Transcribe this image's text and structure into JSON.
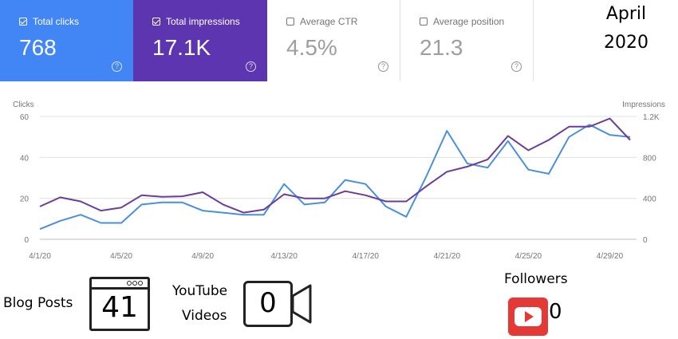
{
  "month": {
    "line1": "April",
    "line2": "2020"
  },
  "cards": [
    {
      "label": "Total clicks",
      "value": "768",
      "checked": true,
      "color": "#4285f4"
    },
    {
      "label": "Total impressions",
      "value": "17.1K",
      "checked": true,
      "color": "#5e35b1"
    },
    {
      "label": "Average CTR",
      "value": "4.5%",
      "checked": false
    },
    {
      "label": "Average position",
      "value": "21.3",
      "checked": false
    }
  ],
  "help_glyph": "?",
  "chart_data": {
    "type": "line",
    "left_axis_label": "Clicks",
    "right_axis_label": "Impressions",
    "left_ticks": [
      "0",
      "20",
      "40",
      "60"
    ],
    "right_ticks": [
      "0",
      "400",
      "800",
      "1.2K"
    ],
    "ylim_left": [
      0,
      60
    ],
    "ylim_right": [
      0,
      1200
    ],
    "x_tick_labels": [
      "4/1/20",
      "4/5/20",
      "4/9/20",
      "4/13/20",
      "4/17/20",
      "4/21/20",
      "4/25/20",
      "4/29/20"
    ],
    "x": [
      "4/1",
      "4/2",
      "4/3",
      "4/4",
      "4/5",
      "4/6",
      "4/7",
      "4/8",
      "4/9",
      "4/10",
      "4/11",
      "4/12",
      "4/13",
      "4/14",
      "4/15",
      "4/16",
      "4/17",
      "4/18",
      "4/19",
      "4/20",
      "4/21",
      "4/22",
      "4/23",
      "4/24",
      "4/25",
      "4/26",
      "4/27",
      "4/28",
      "4/29",
      "4/30"
    ],
    "grid": true,
    "series": [
      {
        "name": "Clicks",
        "axis": "left",
        "color": "#4a8fdc",
        "values": [
          5,
          9,
          12,
          8,
          8,
          17,
          18,
          18,
          14,
          13,
          12,
          12,
          27,
          17,
          18,
          29,
          27,
          16,
          11,
          31,
          53,
          37,
          35,
          48,
          34,
          32,
          50,
          56,
          51,
          50
        ]
      },
      {
        "name": "Impressions",
        "axis": "right",
        "color": "#6a3d9a",
        "values": [
          320,
          410,
          370,
          280,
          310,
          430,
          415,
          420,
          460,
          340,
          260,
          290,
          440,
          400,
          400,
          470,
          430,
          370,
          370,
          520,
          660,
          710,
          780,
          1010,
          870,
          970,
          1100,
          1100,
          1180,
          970
        ]
      }
    ]
  },
  "stats": {
    "blog_label": "Blog Posts",
    "blog_count": "41",
    "youtube_label_line1": "YouTube",
    "youtube_label_line2": "Videos",
    "youtube_count": "0",
    "followers_label": "Followers",
    "followers_count": "0"
  }
}
